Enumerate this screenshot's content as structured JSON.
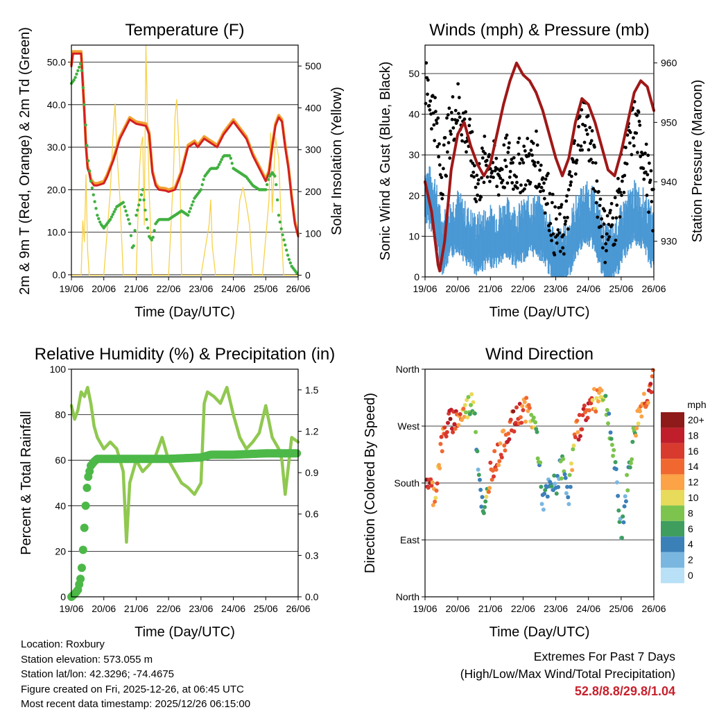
{
  "colors": {
    "temp_red": "#d42020",
    "temp_orange": "#f0a030",
    "dewpoint_green": "#40b040",
    "solar_yellow": "#f7d14a",
    "gust_black": "#000000",
    "wind_blue": "#4a98d4",
    "pressure_maroon": "#a01818",
    "rh_lightgreen": "#90c850",
    "rain_green": "#4cb848",
    "grid": "#000000"
  },
  "footer": {
    "location": "Location: Roxbury",
    "elevation": "Station elevation: 573.055 m",
    "latlon": "Station lat/lon: 42.3296; -74.4675",
    "created": "Figure created on Fri, 2025-12-26, at 06:45 UTC",
    "recent": "Most recent data timestamp: 2025/12/26 06:15:00"
  },
  "extremes": {
    "title": "Extremes For Past 7 Days",
    "subtitle": "(High/Low/Max Wind/Total Precipitation)",
    "values": "52.8/8.8/29.8/1.04"
  },
  "chart_data": [
    {
      "type": "line",
      "title": "Temperature (F)",
      "xlabel": "Time (Day/UTC)",
      "ylabel": "2m & 9m T (Red, Orange) & 2m Td (Green)",
      "y2label": "Solar Insolation (Yellow)",
      "x_ticks": [
        "19/06",
        "20/06",
        "21/06",
        "22/06",
        "23/06",
        "24/06",
        "25/06",
        "26/06"
      ],
      "xlim": [
        0,
        7
      ],
      "ylim": [
        -0.5,
        54
      ],
      "y_ticks": [
        "0.0",
        "10.0",
        "20.0",
        "30.0",
        "40.0",
        "50.0"
      ],
      "y2lim": [
        -4,
        550
      ],
      "y2_ticks": [
        "0",
        "100",
        "200",
        "300",
        "400",
        "500"
      ],
      "series": [
        {
          "name": "2m T",
          "x": [
            0,
            0.05,
            0.3,
            0.35,
            0.4,
            0.45,
            0.5,
            0.55,
            0.6,
            0.7,
            0.8,
            1.0,
            1.1,
            1.3,
            1.5,
            1.7,
            1.8,
            1.9,
            2.0,
            2.3,
            2.4,
            2.5,
            2.6,
            2.7,
            2.9,
            3.0,
            3.2,
            3.4,
            3.6,
            3.8,
            3.9,
            4.1,
            4.3,
            4.5,
            4.7,
            4.9,
            5.0,
            5.2,
            5.4,
            5.6,
            5.8,
            6.0,
            6.1,
            6.2,
            6.3,
            6.4,
            6.5,
            6.6,
            6.7,
            6.8,
            6.9,
            7.0
          ],
          "values": [
            49,
            52,
            52,
            45,
            38,
            30,
            25,
            24,
            22,
            21,
            21,
            21.5,
            23,
            27,
            32,
            35,
            36.5,
            36,
            35.5,
            35,
            33,
            24,
            21,
            20,
            19.8,
            19.5,
            20,
            24,
            30,
            31,
            30,
            32,
            31,
            30,
            33,
            35,
            36,
            34,
            32,
            28,
            25,
            22,
            24,
            30,
            35,
            37,
            36,
            30,
            25,
            18,
            12,
            9
          ]
        },
        {
          "name": "9m T",
          "x": [
            0,
            0.05,
            0.3,
            0.35,
            0.4,
            0.45,
            0.5,
            0.55,
            0.6,
            0.7,
            0.8,
            1.0,
            1.1,
            1.3,
            1.5,
            1.7,
            1.8,
            1.9,
            2.0,
            2.3,
            2.4,
            2.5,
            2.6,
            2.7,
            2.9,
            3.0,
            3.2,
            3.4,
            3.6,
            3.8,
            3.9,
            4.1,
            4.3,
            4.5,
            4.7,
            4.9,
            5.0,
            5.2,
            5.4,
            5.6,
            5.8,
            6.0,
            6.1,
            6.2,
            6.3,
            6.4,
            6.5,
            6.6,
            6.7,
            6.8,
            6.9,
            7.0
          ],
          "values": [
            49.5,
            52.5,
            52.5,
            45.5,
            38.5,
            30.5,
            25.5,
            24.5,
            22.5,
            21.5,
            21.5,
            22,
            23.5,
            27.5,
            32.5,
            35.5,
            37,
            36.5,
            36,
            35.5,
            33.5,
            24.5,
            21.5,
            20.5,
            20.3,
            20,
            20.5,
            24.5,
            30.5,
            31.5,
            30.5,
            32.5,
            31.5,
            30.5,
            33.5,
            35.5,
            36.5,
            34.5,
            32.5,
            28.5,
            25.5,
            22.5,
            24.5,
            30.5,
            35.5,
            37.5,
            36.5,
            30.5,
            25.5,
            18.5,
            12.5,
            9.5
          ]
        },
        {
          "name": "2m Td",
          "x": [
            0,
            0.1,
            0.2,
            0.3,
            0.4,
            0.5,
            0.6,
            0.7,
            0.8,
            0.9,
            1.0,
            1.2,
            1.4,
            1.6,
            1.8,
            1.9,
            2.0,
            2.1,
            2.2,
            2.3,
            2.4,
            2.5,
            2.6,
            2.7,
            3.0,
            3.2,
            3.4,
            3.6,
            3.8,
            4.0,
            4.1,
            4.3,
            4.5,
            4.7,
            4.9,
            5.0,
            5.2,
            5.4,
            5.6,
            5.8,
            6.0,
            6.1,
            6.2,
            6.3,
            6.4,
            6.5,
            6.6,
            6.7,
            6.8,
            6.9,
            7.0
          ],
          "values": [
            45,
            46,
            48,
            50,
            40,
            28,
            22,
            18,
            14,
            12,
            11,
            13,
            16,
            17,
            12,
            5,
            14,
            17,
            20,
            14,
            9,
            8,
            12,
            13,
            13,
            14,
            15,
            14,
            18,
            20,
            23,
            25,
            25,
            28,
            28,
            25,
            24,
            23,
            21,
            20,
            20,
            23,
            24,
            23,
            14,
            10,
            7,
            4,
            2,
            1,
            0
          ]
        },
        {
          "name": "Solar Insolation",
          "axis": "y2",
          "x": [
            0,
            0.3,
            0.35,
            0.4,
            0.45,
            0.5,
            0.55,
            1.0,
            1.2,
            1.3,
            1.35,
            1.4,
            1.5,
            1.6,
            2.0,
            2.1,
            2.15,
            2.2,
            2.25,
            2.3,
            2.4,
            2.5,
            3.0,
            3.15,
            3.2,
            3.25,
            3.35,
            3.4,
            4.0,
            4.25,
            4.3,
            4.35,
            4.45,
            5.0,
            5.15,
            5.2,
            5.3,
            5.4,
            5.5,
            5.6,
            5.9,
            6.1,
            6.15,
            6.2,
            6.3,
            6.4,
            6.5,
            6.55,
            7.0
          ],
          "values": [
            0,
            0,
            130,
            80,
            240,
            60,
            0,
            0,
            200,
            360,
            410,
            300,
            180,
            0,
            0,
            250,
            310,
            330,
            120,
            550,
            200,
            0,
            0,
            240,
            380,
            420,
            260,
            0,
            0,
            120,
            180,
            70,
            0,
            0,
            130,
            180,
            210,
            170,
            120,
            0,
            0,
            180,
            340,
            150,
            330,
            280,
            80,
            0,
            0
          ]
        }
      ]
    },
    {
      "type": "scatter",
      "title": "Winds (mph) & Pressure (mb)",
      "xlabel": "Time (Day/UTC)",
      "ylabel": "Sonic Wind & Gust (Blue, Black)",
      "y2label": "Station Pressure (Maroon)",
      "x_ticks": [
        "19/06",
        "20/06",
        "21/06",
        "22/06",
        "23/06",
        "24/06",
        "25/06",
        "26/06"
      ],
      "xlim": [
        0,
        7
      ],
      "ylim": [
        0,
        57
      ],
      "y_ticks": [
        "0",
        "10",
        "20",
        "30",
        "40",
        "50"
      ],
      "y2lim": [
        924,
        963
      ],
      "y2_ticks": [
        "930",
        "940",
        "950",
        "960"
      ],
      "series": [
        {
          "name": "Wind Gust",
          "x": [
            0.1,
            0.3,
            0.5,
            0.8,
            1.0,
            1.3,
            1.6,
            1.9,
            2.2,
            2.5,
            2.8,
            3.1,
            3.4,
            3.7,
            4.0,
            4.3,
            4.6,
            4.9,
            5.2,
            5.5,
            5.8,
            6.1,
            6.4,
            6.7,
            7.0
          ],
          "values": [
            45,
            40,
            25,
            38,
            42,
            35,
            22,
            30,
            25,
            28,
            27,
            28,
            29,
            22,
            10,
            12,
            32,
            40,
            25,
            10,
            14,
            28,
            38,
            30,
            15
          ]
        },
        {
          "name": "Sonic Wind",
          "x": [
            0.1,
            0.3,
            0.5,
            0.8,
            1.0,
            1.3,
            1.6,
            1.9,
            2.2,
            2.5,
            2.8,
            3.1,
            3.4,
            3.7,
            4.0,
            4.3,
            4.6,
            4.9,
            5.2,
            5.5,
            5.8,
            6.1,
            6.4,
            6.7,
            7.0
          ],
          "values": [
            20,
            18,
            8,
            12,
            14,
            10,
            8,
            10,
            10,
            12,
            10,
            12,
            13,
            10,
            4,
            5,
            12,
            16,
            14,
            5,
            6,
            12,
            16,
            14,
            8
          ]
        },
        {
          "name": "Station Pressure",
          "axis": "y2",
          "x": [
            0,
            0.2,
            0.4,
            0.45,
            0.6,
            0.8,
            1.0,
            1.2,
            1.4,
            1.6,
            1.8,
            2.0,
            2.2,
            2.4,
            2.6,
            2.8,
            3.0,
            3.2,
            3.4,
            3.6,
            3.8,
            4.0,
            4.2,
            4.4,
            4.6,
            4.8,
            5.0,
            5.2,
            5.4,
            5.6,
            5.8,
            6.0,
            6.2,
            6.4,
            6.6,
            6.8,
            7.0
          ],
          "values": [
            940,
            935,
            926,
            925,
            930,
            942,
            948,
            950,
            946,
            943,
            941,
            943,
            948,
            953,
            957,
            960,
            958,
            957,
            955,
            952,
            948,
            944,
            941,
            944,
            950,
            954,
            953,
            950,
            946,
            942,
            941,
            945,
            950,
            955,
            957,
            956,
            952
          ]
        }
      ]
    },
    {
      "type": "line",
      "title": "Relative Humidity (%) & Precipitation (in)",
      "xlabel": "Time (Day/UTC)",
      "ylabel": "Percent & Total Rainfall",
      "x_ticks": [
        "19/06",
        "20/06",
        "21/06",
        "22/06",
        "23/06",
        "24/06",
        "25/06",
        "26/06"
      ],
      "xlim": [
        0,
        7
      ],
      "ylim": [
        0,
        100
      ],
      "y_ticks": [
        "0",
        "20",
        "40",
        "60",
        "80",
        "100"
      ],
      "y2lim": [
        0,
        1.65
      ],
      "y2_ticks": [
        "0.0",
        "0.3",
        "0.6",
        "0.9",
        "1.2",
        "1.5"
      ],
      "series": [
        {
          "name": "Relative Humidity",
          "x": [
            0,
            0.1,
            0.2,
            0.3,
            0.4,
            0.5,
            0.6,
            0.7,
            0.8,
            1.0,
            1.2,
            1.4,
            1.6,
            1.7,
            1.8,
            1.9,
            2.0,
            2.2,
            2.4,
            2.6,
            2.8,
            3.0,
            3.2,
            3.4,
            3.6,
            3.8,
            4.0,
            4.1,
            4.2,
            4.4,
            4.6,
            4.8,
            5.0,
            5.2,
            5.4,
            5.6,
            5.8,
            6.0,
            6.2,
            6.4,
            6.5,
            6.6,
            6.8,
            7.0
          ],
          "values": [
            84,
            78,
            82,
            90,
            88,
            92,
            85,
            75,
            70,
            65,
            68,
            65,
            55,
            24,
            50,
            55,
            60,
            55,
            58,
            62,
            70,
            60,
            55,
            50,
            48,
            45,
            50,
            85,
            90,
            88,
            85,
            92,
            80,
            70,
            65,
            68,
            72,
            84,
            70,
            65,
            60,
            45,
            70,
            68
          ]
        },
        {
          "name": "Total Precipitation",
          "axis": "y2",
          "x": [
            0,
            0.1,
            0.2,
            0.3,
            0.35,
            0.4,
            0.45,
            0.5,
            0.55,
            0.6,
            0.7,
            0.8,
            0.9,
            1.0,
            2.0,
            3.0,
            4.0,
            4.3,
            5.0,
            6.0,
            7.0
          ],
          "values": [
            0,
            0.02,
            0.05,
            0.15,
            0.3,
            0.5,
            0.7,
            0.85,
            0.9,
            0.95,
            0.98,
            1.0,
            1.0,
            1.0,
            1.0,
            1.0,
            1.01,
            1.03,
            1.03,
            1.04,
            1.04
          ]
        }
      ]
    },
    {
      "type": "scatter",
      "title": "Wind Direction",
      "xlabel": "Time (Day/UTC)",
      "ylabel": "Direction (Colored By Speed)",
      "x_ticks": [
        "19/06",
        "20/06",
        "21/06",
        "22/06",
        "23/06",
        "24/06",
        "25/06",
        "26/06"
      ],
      "xlim": [
        0,
        7
      ],
      "ylim": [
        0,
        360
      ],
      "y_ticks": [
        "North",
        "East",
        "South",
        "West",
        "North"
      ],
      "legend": {
        "title": "mph",
        "labels": [
          "20+",
          "18",
          "16",
          "14",
          "12",
          "10",
          "8",
          "6",
          "4",
          "2",
          "0"
        ],
        "colors": [
          "#8e1a1a",
          "#bf1e2a",
          "#d93a2e",
          "#f06830",
          "#fba346",
          "#e8da5a",
          "#7dc44e",
          "#3f9e5e",
          "#3c80b8",
          "#7ab7e0",
          "#b8e0f6"
        ]
      },
      "series": [
        {
          "name": "Direction",
          "x": [
            0.1,
            0.2,
            0.3,
            0.5,
            0.7,
            0.9,
            1.1,
            1.3,
            1.5,
            1.6,
            1.7,
            1.8,
            2.0,
            2.2,
            2.4,
            2.6,
            2.8,
            3.0,
            3.2,
            3.4,
            3.6,
            3.8,
            4.0,
            4.2,
            4.4,
            4.6,
            4.8,
            5.0,
            5.2,
            5.4,
            5.6,
            5.8,
            6.0,
            6.2,
            6.4,
            6.6,
            6.8,
            6.95
          ],
          "values": [
            180,
            170,
            160,
            240,
            275,
            280,
            285,
            300,
            310,
            230,
            170,
            120,
            200,
            220,
            245,
            270,
            280,
            300,
            290,
            265,
            150,
            170,
            175,
            210,
            165,
            255,
            280,
            300,
            310,
            330,
            290,
            210,
            100,
            185,
            260,
            300,
            320,
            340
          ],
          "speeds": [
            18,
            16,
            12,
            14,
            16,
            18,
            14,
            8,
            10,
            4,
            4,
            4,
            14,
            16,
            14,
            16,
            18,
            14,
            12,
            8,
            4,
            4,
            4,
            6,
            4,
            14,
            16,
            16,
            12,
            10,
            6,
            6,
            2,
            6,
            8,
            12,
            14,
            16
          ]
        }
      ]
    }
  ]
}
